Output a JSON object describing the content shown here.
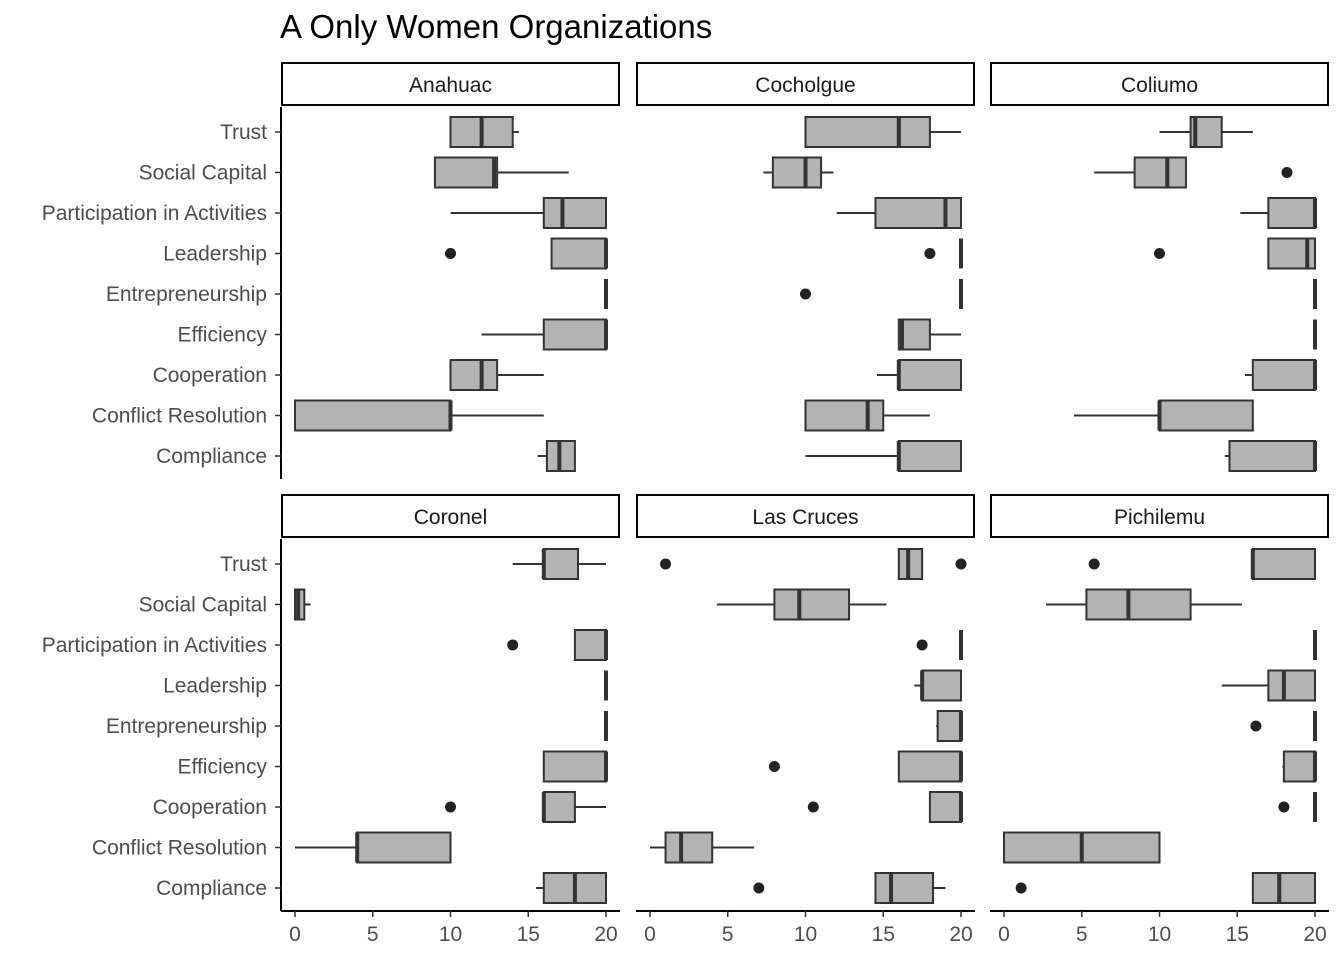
{
  "chart_data": {
    "type": "boxplot",
    "title": "A  Only Women Organizations",
    "xlabel": "",
    "ylabel": "",
    "xlim": [
      0,
      20
    ],
    "x_ticks": [
      0,
      5,
      10,
      15,
      20
    ],
    "grid": false,
    "legend": "none",
    "categories": [
      "Trust",
      "Social Capital",
      "Participation in Activities",
      "Leadership",
      "Entrepreneurship",
      "Efficiency",
      "Cooperation",
      "Conflict Resolution",
      "Compliance"
    ],
    "colors": {
      "box_fill": "#b3b3b3",
      "box_stroke": "#333333",
      "point": "#222222",
      "strip_border": "#000000",
      "axis": "#000000",
      "text": "#4d4d4d"
    },
    "panels": [
      {
        "name": "Anahuac",
        "boxes": {
          "Trust": {
            "lw": 10,
            "q1": 10,
            "med": 12,
            "q3": 14,
            "uw": 14.4,
            "outliers": []
          },
          "Social Capital": {
            "lw": 9,
            "q1": 9,
            "med": 12.8,
            "q3": 13,
            "uw": 17.6,
            "outliers": []
          },
          "Participation in Activities": {
            "lw": 10,
            "q1": 16,
            "med": 17.2,
            "q3": 20,
            "uw": 20,
            "outliers": []
          },
          "Leadership": {
            "lw": 16.5,
            "q1": 16.5,
            "med": 20,
            "q3": 20,
            "uw": 20,
            "outliers": [
              10
            ]
          },
          "Entrepreneurship": {
            "lw": 20,
            "q1": 20,
            "med": 20,
            "q3": 20,
            "uw": 20,
            "outliers": []
          },
          "Efficiency": {
            "lw": 12,
            "q1": 16,
            "med": 20,
            "q3": 20,
            "uw": 20,
            "outliers": []
          },
          "Cooperation": {
            "lw": 10,
            "q1": 10,
            "med": 12,
            "q3": 13,
            "uw": 16,
            "outliers": []
          },
          "Conflict Resolution": {
            "lw": 0,
            "q1": 0,
            "med": 10,
            "q3": 10,
            "uw": 16,
            "outliers": []
          },
          "Compliance": {
            "lw": 15.6,
            "q1": 16.2,
            "med": 17,
            "q3": 18,
            "uw": 18,
            "outliers": []
          }
        }
      },
      {
        "name": "Cocholgue",
        "boxes": {
          "Trust": {
            "lw": 10,
            "q1": 10,
            "med": 16,
            "q3": 18,
            "uw": 20,
            "outliers": []
          },
          "Social Capital": {
            "lw": 7.3,
            "q1": 7.9,
            "med": 10,
            "q3": 11,
            "uw": 11.8,
            "outliers": []
          },
          "Participation in Activities": {
            "lw": 12,
            "q1": 14.5,
            "med": 19,
            "q3": 20,
            "uw": 20,
            "outliers": []
          },
          "Leadership": {
            "lw": 20,
            "q1": 20,
            "med": 20,
            "q3": 20,
            "uw": 20,
            "outliers": [
              18
            ]
          },
          "Entrepreneurship": {
            "lw": 20,
            "q1": 20,
            "med": 20,
            "q3": 20,
            "uw": 20,
            "outliers": [
              10
            ]
          },
          "Efficiency": {
            "lw": 16,
            "q1": 16,
            "med": 16.2,
            "q3": 18,
            "uw": 20,
            "outliers": []
          },
          "Cooperation": {
            "lw": 14.6,
            "q1": 16,
            "med": 16,
            "q3": 20,
            "uw": 20,
            "outliers": []
          },
          "Conflict Resolution": {
            "lw": 10,
            "q1": 10,
            "med": 14,
            "q3": 15,
            "uw": 18,
            "outliers": []
          },
          "Compliance": {
            "lw": 10,
            "q1": 16,
            "med": 16,
            "q3": 20,
            "uw": 20,
            "outliers": []
          }
        }
      },
      {
        "name": "Coliumo",
        "boxes": {
          "Trust": {
            "lw": 10,
            "q1": 12,
            "med": 12.3,
            "q3": 14,
            "uw": 16,
            "outliers": []
          },
          "Social Capital": {
            "lw": 5.8,
            "q1": 8.4,
            "med": 10.5,
            "q3": 11.7,
            "uw": 11.7,
            "outliers": [
              18.2
            ]
          },
          "Participation in Activities": {
            "lw": 15.2,
            "q1": 17,
            "med": 20,
            "q3": 20,
            "uw": 20,
            "outliers": []
          },
          "Leadership": {
            "lw": 17,
            "q1": 17,
            "med": 19.5,
            "q3": 20,
            "uw": 20,
            "outliers": [
              10
            ]
          },
          "Entrepreneurship": {
            "lw": 20,
            "q1": 20,
            "med": 20,
            "q3": 20,
            "uw": 20,
            "outliers": []
          },
          "Efficiency": {
            "lw": 20,
            "q1": 20,
            "med": 20,
            "q3": 20,
            "uw": 20,
            "outliers": []
          },
          "Cooperation": {
            "lw": 15.5,
            "q1": 16,
            "med": 20,
            "q3": 20,
            "uw": 20,
            "outliers": []
          },
          "Conflict Resolution": {
            "lw": 4.5,
            "q1": 10,
            "med": 10,
            "q3": 16,
            "uw": 16,
            "outliers": []
          },
          "Compliance": {
            "lw": 14.2,
            "q1": 14.5,
            "med": 20,
            "q3": 20,
            "uw": 20,
            "outliers": []
          }
        }
      },
      {
        "name": "Coronel",
        "boxes": {
          "Trust": {
            "lw": 14,
            "q1": 16,
            "med": 16,
            "q3": 18.2,
            "uw": 20,
            "outliers": []
          },
          "Social Capital": {
            "lw": 0,
            "q1": 0,
            "med": 0.2,
            "q3": 0.6,
            "uw": 1,
            "outliers": []
          },
          "Participation in Activities": {
            "lw": 18,
            "q1": 18,
            "med": 20,
            "q3": 20,
            "uw": 20,
            "outliers": [
              14
            ]
          },
          "Leadership": {
            "lw": 20,
            "q1": 20,
            "med": 20,
            "q3": 20,
            "uw": 20,
            "outliers": []
          },
          "Entrepreneurship": {
            "lw": 20,
            "q1": 20,
            "med": 20,
            "q3": 20,
            "uw": 20,
            "outliers": []
          },
          "Efficiency": {
            "lw": 16,
            "q1": 16,
            "med": 20,
            "q3": 20,
            "uw": 20,
            "outliers": []
          },
          "Cooperation": {
            "lw": 16,
            "q1": 16,
            "med": 16,
            "q3": 18,
            "uw": 20,
            "outliers": [
              10
            ]
          },
          "Conflict Resolution": {
            "lw": 0,
            "q1": 4,
            "med": 4,
            "q3": 10,
            "uw": 10,
            "outliers": []
          },
          "Compliance": {
            "lw": 15.5,
            "q1": 16,
            "med": 18,
            "q3": 20,
            "uw": 20,
            "outliers": []
          }
        }
      },
      {
        "name": "Las Cruces",
        "boxes": {
          "Trust": {
            "lw": 16,
            "q1": 16,
            "med": 16.6,
            "q3": 17.5,
            "uw": 17.5,
            "outliers": [
              1,
              20
            ]
          },
          "Social Capital": {
            "lw": 4.3,
            "q1": 8,
            "med": 9.6,
            "q3": 12.8,
            "uw": 15.2,
            "outliers": []
          },
          "Participation in Activities": {
            "lw": 20,
            "q1": 20,
            "med": 20,
            "q3": 20,
            "uw": 20,
            "outliers": [
              17.5
            ]
          },
          "Leadership": {
            "lw": 17,
            "q1": 17.5,
            "med": 17.5,
            "q3": 20,
            "uw": 20,
            "outliers": []
          },
          "Entrepreneurship": {
            "lw": 18.4,
            "q1": 18.5,
            "med": 20,
            "q3": 20,
            "uw": 20,
            "outliers": []
          },
          "Efficiency": {
            "lw": 16,
            "q1": 16,
            "med": 20,
            "q3": 20,
            "uw": 20,
            "outliers": [
              8
            ]
          },
          "Cooperation": {
            "lw": 18,
            "q1": 18,
            "med": 20,
            "q3": 20,
            "uw": 20,
            "outliers": [
              10.5
            ]
          },
          "Conflict Resolution": {
            "lw": 0,
            "q1": 1,
            "med": 2,
            "q3": 4,
            "uw": 6.7,
            "outliers": []
          },
          "Compliance": {
            "lw": 14.5,
            "q1": 14.5,
            "med": 15.5,
            "q3": 18.2,
            "uw": 19,
            "outliers": [
              7
            ]
          }
        }
      },
      {
        "name": "Pichilemu",
        "boxes": {
          "Trust": {
            "lw": 16,
            "q1": 16,
            "med": 16,
            "q3": 20,
            "uw": 20,
            "outliers": [
              5.8
            ]
          },
          "Social Capital": {
            "lw": 2.7,
            "q1": 5.3,
            "med": 8,
            "q3": 12,
            "uw": 15.3,
            "outliers": []
          },
          "Participation in Activities": {
            "lw": 20,
            "q1": 20,
            "med": 20,
            "q3": 20,
            "uw": 20,
            "outliers": []
          },
          "Leadership": {
            "lw": 14,
            "q1": 17,
            "med": 18,
            "q3": 20,
            "uw": 20,
            "outliers": []
          },
          "Entrepreneurship": {
            "lw": 20,
            "q1": 20,
            "med": 20,
            "q3": 20,
            "uw": 20,
            "outliers": [
              16.2
            ]
          },
          "Efficiency": {
            "lw": 17.9,
            "q1": 18,
            "med": 20,
            "q3": 20,
            "uw": 20,
            "outliers": []
          },
          "Cooperation": {
            "lw": 20,
            "q1": 20,
            "med": 20,
            "q3": 20,
            "uw": 20,
            "outliers": [
              18
            ]
          },
          "Conflict Resolution": {
            "lw": 0,
            "q1": 0,
            "med": 5,
            "q3": 10,
            "uw": 10,
            "outliers": []
          },
          "Compliance": {
            "lw": 16,
            "q1": 16,
            "med": 17.7,
            "q3": 20,
            "uw": 20,
            "outliers": [
              1.1
            ]
          }
        }
      }
    ]
  }
}
